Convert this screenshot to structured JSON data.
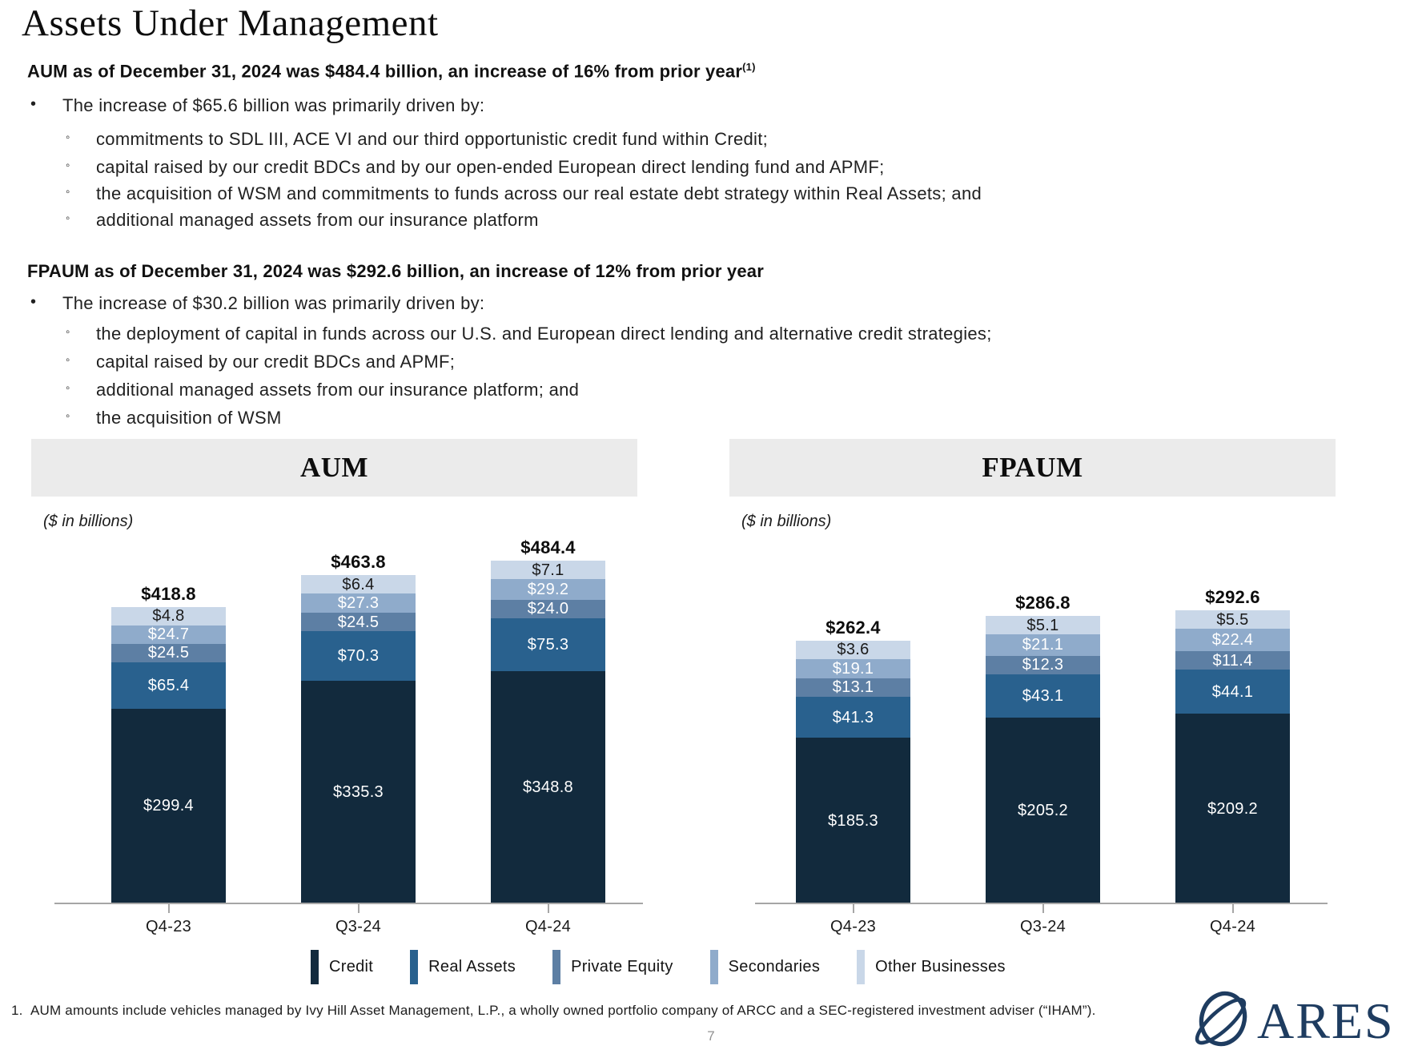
{
  "page": {
    "title": "Assets Under Management",
    "page_number": "7",
    "bullet_marker": "•",
    "sub_bullet_marker": "◦",
    "footnote_index": "1.",
    "footnote": "AUM amounts include vehicles managed by Ivy Hill Asset Management, L.P., a wholly owned portfolio company of ARCC and a SEC-registered investment adviser (“IHAM”).",
    "logo_text": "ARES",
    "logo_color": "#1e3c60"
  },
  "aum_section": {
    "heading": "AUM as of December 31, 2024 was $484.4 billion, an increase of 16% from prior year",
    "heading_superscript": "(1)",
    "bullet": "The increase of $65.6 billion was primarily driven by:",
    "sub_bullets": [
      "commitments to SDL III, ACE VI and our third opportunistic credit fund within Credit;",
      "capital raised by our credit BDCs and by our open-ended European direct lending fund and APMF;",
      "the acquisition of WSM and commitments to funds across our real estate debt strategy within Real Assets; and",
      "additional managed assets from our insurance platform"
    ]
  },
  "fpaum_section": {
    "heading": "FPAUM as of December 31, 2024 was $292.6 billion, an increase of 12% from prior year",
    "bullet": "The increase of $30.2 billion was primarily driven by:",
    "sub_bullets": [
      "the deployment of capital in funds across our U.S. and European direct lending and alternative credit strategies;",
      "capital raised by our credit BDCs and APMF;",
      "additional managed assets from our insurance platform; and",
      "the acquisition of WSM"
    ]
  },
  "legend": [
    {
      "label": "Credit",
      "color": "#122a3d",
      "value_label_color": "#ffffff"
    },
    {
      "label": "Real Assets",
      "color": "#29618e",
      "value_label_color": "#ffffff"
    },
    {
      "label": "Private Equity",
      "color": "#5d7fa4",
      "value_label_color": "#ffffff"
    },
    {
      "label": "Secondaries",
      "color": "#8fabcb",
      "value_label_color": "#ffffff"
    },
    {
      "label": "Other Businesses",
      "color": "#c9d7e8",
      "value_label_color": "#1a1a1a"
    }
  ],
  "chart_data": [
    {
      "type": "bar",
      "stacked": true,
      "title": "AUM",
      "units_label": "($ in billions)",
      "legend_position": "bottom",
      "categories": [
        "Q4-23",
        "Q3-24",
        "Q4-24"
      ],
      "totals": [
        418.8,
        463.8,
        484.4
      ],
      "series": [
        {
          "name": "Credit",
          "values": [
            299.4,
            335.3,
            348.8
          ]
        },
        {
          "name": "Real Assets",
          "values": [
            65.4,
            70.3,
            75.3
          ]
        },
        {
          "name": "Private Equity",
          "values": [
            24.5,
            24.5,
            24.0
          ]
        },
        {
          "name": "Secondaries",
          "values": [
            24.7,
            27.3,
            29.2
          ]
        },
        {
          "name": "Other Businesses",
          "values": [
            4.8,
            6.4,
            7.1
          ]
        }
      ]
    },
    {
      "type": "bar",
      "stacked": true,
      "title": "FPAUM",
      "units_label": "($ in billions)",
      "legend_position": "bottom",
      "categories": [
        "Q4-23",
        "Q3-24",
        "Q4-24"
      ],
      "totals": [
        262.4,
        286.8,
        292.6
      ],
      "series": [
        {
          "name": "Credit",
          "values": [
            185.3,
            205.2,
            209.2
          ]
        },
        {
          "name": "Real Assets",
          "values": [
            41.3,
            43.1,
            44.1
          ]
        },
        {
          "name": "Private Equity",
          "values": [
            13.1,
            12.3,
            11.4
          ]
        },
        {
          "name": "Secondaries",
          "values": [
            19.1,
            21.1,
            22.4
          ]
        },
        {
          "name": "Other Businesses",
          "values": [
            3.6,
            5.1,
            5.5
          ]
        }
      ]
    }
  ]
}
